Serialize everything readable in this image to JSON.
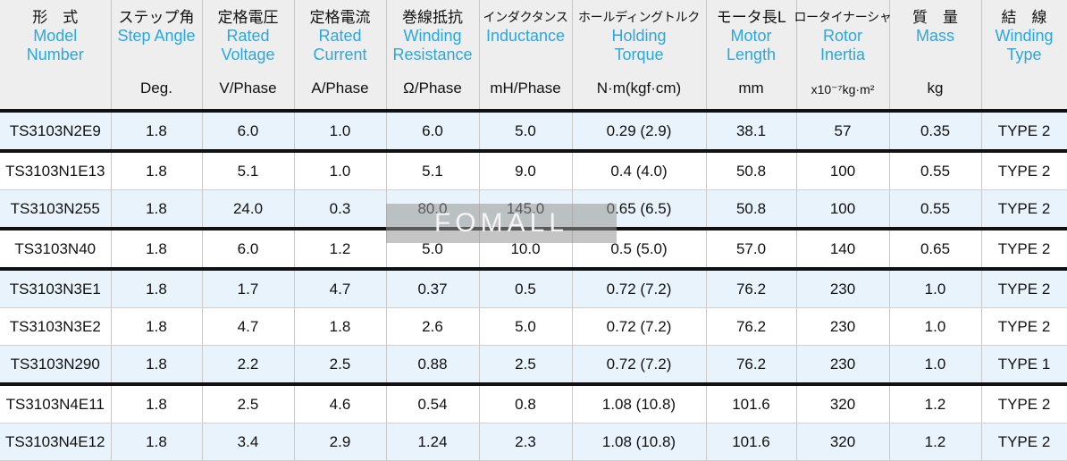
{
  "watermark": "FOMALL",
  "columns": [
    {
      "jp": "形　式",
      "en": [
        "Model",
        "Number"
      ],
      "unit": ""
    },
    {
      "jp": "ステップ角",
      "en": [
        "Step Angle"
      ],
      "unit": "Deg."
    },
    {
      "jp": "定格電圧",
      "en": [
        "Rated",
        "Voltage"
      ],
      "unit": "V/Phase"
    },
    {
      "jp": "定格電流",
      "en": [
        "Rated",
        "Current"
      ],
      "unit": "A/Phase"
    },
    {
      "jp": "巻線抵抗",
      "en": [
        "Winding",
        "Resistance"
      ],
      "unit": "Ω/Phase"
    },
    {
      "jp": "インダクタンス",
      "en": [
        "Inductance"
      ],
      "unit": "mH/Phase"
    },
    {
      "jp": "ホールディングトルク",
      "en": [
        "Holding",
        "Torque"
      ],
      "unit": "N·m(kgf·cm)"
    },
    {
      "jp": "モータ長L",
      "en": [
        "Motor",
        "Length"
      ],
      "unit": "mm"
    },
    {
      "jp": "ロータイナーシャ",
      "en": [
        "Rotor",
        "Inertia"
      ],
      "unit": "x10⁻⁷kg·m²"
    },
    {
      "jp": "質　量",
      "en": [
        "Mass"
      ],
      "unit": "kg"
    },
    {
      "jp": "結　線",
      "en": [
        "Winding",
        "Type"
      ],
      "unit": ""
    }
  ],
  "rows": [
    [
      "TS3103N2E9",
      "1.8",
      "6.0",
      "1.0",
      "6.0",
      "5.0",
      "0.29 (2.9)",
      "38.1",
      "57",
      "0.35",
      "TYPE 2"
    ],
    [
      "TS3103N1E13",
      "1.8",
      "5.1",
      "1.0",
      "5.1",
      "9.0",
      "0.4 (4.0)",
      "50.8",
      "100",
      "0.55",
      "TYPE 2"
    ],
    [
      "TS3103N255",
      "1.8",
      "24.0",
      "0.3",
      "80.0",
      "145.0",
      "0.65 (6.5)",
      "50.8",
      "100",
      "0.55",
      "TYPE 2"
    ],
    [
      "TS3103N40",
      "1.8",
      "6.0",
      "1.2",
      "5.0",
      "10.0",
      "0.5 (5.0)",
      "57.0",
      "140",
      "0.65",
      "TYPE 2"
    ],
    [
      "TS3103N3E1",
      "1.8",
      "1.7",
      "4.7",
      "0.37",
      "0.5",
      "0.72 (7.2)",
      "76.2",
      "230",
      "1.0",
      "TYPE 2"
    ],
    [
      "TS3103N3E2",
      "1.8",
      "4.7",
      "1.8",
      "2.6",
      "5.0",
      "0.72 (7.2)",
      "76.2",
      "230",
      "1.0",
      "TYPE 2"
    ],
    [
      "TS3103N290",
      "1.8",
      "2.2",
      "2.5",
      "0.88",
      "2.5",
      "0.72 (7.2)",
      "76.2",
      "230",
      "1.0",
      "TYPE 1"
    ],
    [
      "TS3103N4E11",
      "1.8",
      "2.5",
      "4.6",
      "0.54",
      "0.8",
      "1.08 (10.8)",
      "101.6",
      "320",
      "1.2",
      "TYPE 2"
    ],
    [
      "TS3103N4E12",
      "1.8",
      "3.4",
      "2.9",
      "1.24",
      "2.3",
      "1.08 (10.8)",
      "101.6",
      "320",
      "1.2",
      "TYPE 2"
    ]
  ]
}
